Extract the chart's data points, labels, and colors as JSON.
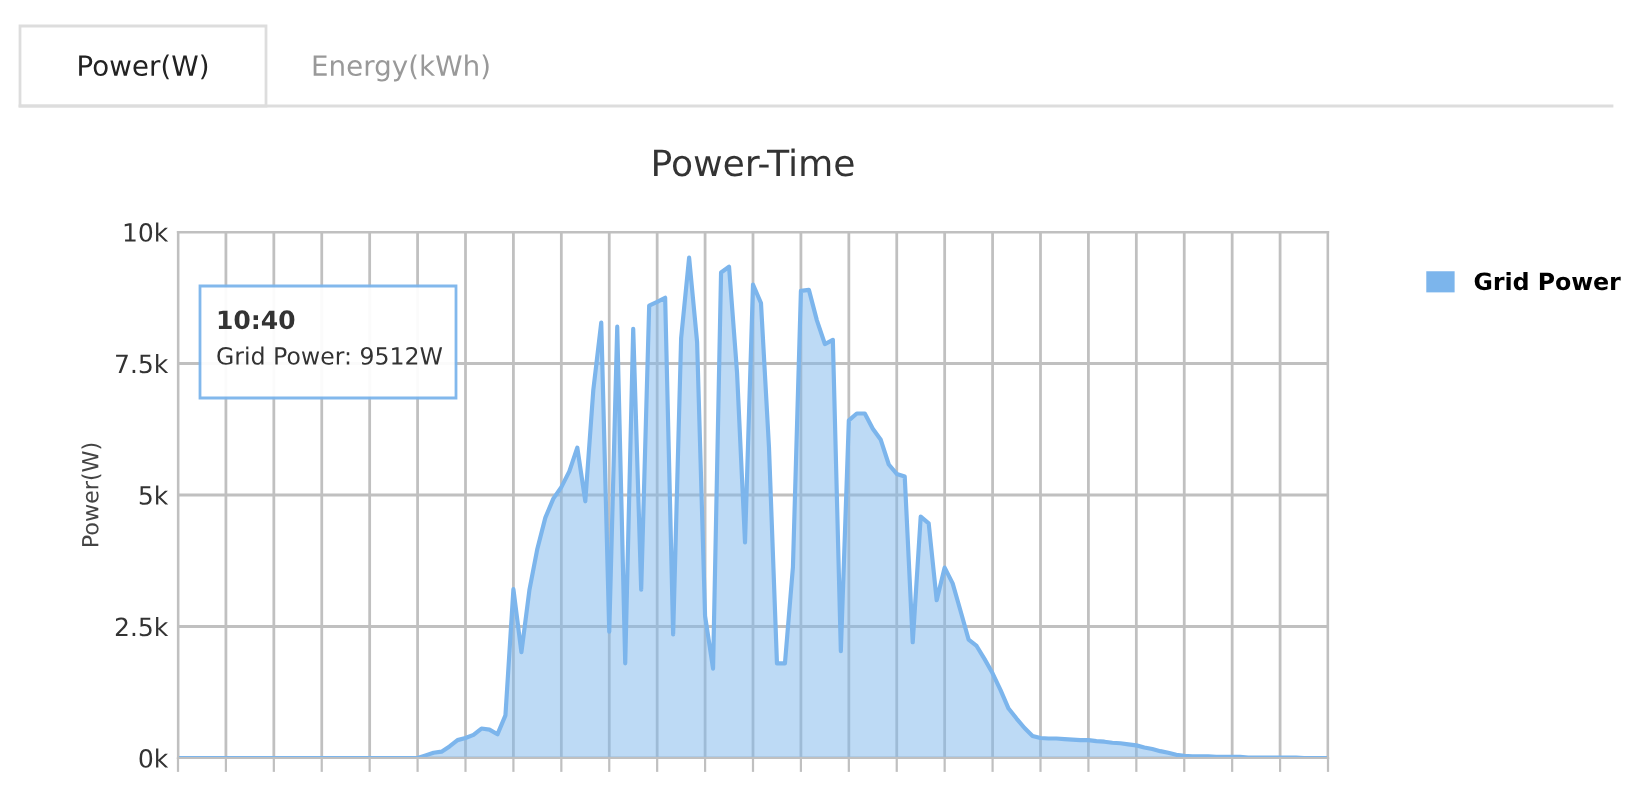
{
  "chart_data": {
    "type": "area",
    "title": "Power-Time",
    "ylabel": "Power(W)",
    "annotations": [
      "Power(W)",
      "Energy(kWh)",
      "10:40",
      "Grid Power: 9512W"
    ],
    "categories": [
      null,
      null,
      null,
      null,
      null,
      null,
      null,
      null,
      null,
      null,
      null,
      null,
      null,
      null,
      null,
      null,
      null,
      null,
      null,
      null,
      null,
      null,
      null,
      null,
      null,
      null,
      null,
      null,
      null,
      null,
      null,
      null,
      null,
      null,
      null,
      null,
      null,
      null,
      null,
      null,
      null,
      null,
      null,
      null,
      null,
      null,
      null,
      null,
      null,
      null,
      null,
      null,
      null,
      null,
      null,
      null,
      null,
      null,
      null,
      null,
      null,
      null,
      null,
      null,
      null,
      null,
      null,
      null,
      null,
      null,
      null,
      null,
      null,
      null,
      null,
      null,
      null,
      null,
      null,
      null,
      null,
      null,
      null,
      null,
      null,
      null,
      null,
      null,
      null,
      null,
      null,
      null,
      null,
      null,
      null,
      null,
      null,
      null,
      null,
      null,
      null,
      null,
      null,
      null,
      null,
      null,
      null,
      null,
      null,
      null,
      null,
      null,
      null,
      null,
      null,
      null,
      null,
      null,
      null,
      null,
      null,
      null,
      null,
      null,
      null,
      null,
      null,
      null,
      null,
      null,
      null,
      null,
      null,
      null,
      null,
      null,
      null,
      null,
      null,
      null,
      null,
      null,
      null,
      null,
      null
    ],
    "ylim": [
      0,
      10000
    ],
    "yticks": [
      {
        "value": 0,
        "label": "0k"
      },
      {
        "value": 2500,
        "label": "2.5k"
      },
      {
        "value": 5000,
        "label": "5k"
      },
      {
        "value": 7500,
        "label": "7.5k"
      },
      {
        "value": 10000,
        "label": "10k"
      }
    ],
    "grid": true,
    "legend": "top right",
    "series": [
      {
        "name": "Grid Power",
        "color": "#7cb5ec",
        "values": [
          0,
          0,
          0,
          0,
          0,
          0,
          0,
          0,
          0,
          0,
          0,
          0,
          0,
          0,
          0,
          0,
          0,
          0,
          0,
          0,
          0,
          0,
          0,
          0,
          0,
          0,
          0,
          0,
          0,
          0,
          0,
          50,
          100,
          120,
          220,
          340,
          380,
          440,
          560,
          540,
          450,
          810,
          3210,
          2010,
          3190,
          3980,
          4570,
          4930,
          5150,
          5450,
          5900,
          4880,
          6990,
          8280,
          2400,
          8200,
          1800,
          8160,
          3200,
          8600,
          8670,
          8750,
          2350,
          7980,
          9512,
          7910,
          2700,
          1700,
          9230,
          9340,
          7330,
          4100,
          9000,
          8650,
          5910,
          1800,
          1800,
          3630,
          8880,
          8900,
          8320,
          7870,
          7950,
          2030,
          6420,
          6550,
          6550,
          6260,
          6050,
          5580,
          5400,
          5350,
          2200,
          4590,
          4460,
          3000,
          3620,
          3320,
          2790,
          2250,
          2130,
          1880,
          1610,
          1290,
          940,
          750,
          570,
          420,
          380,
          370,
          370,
          360,
          350,
          340,
          340,
          320,
          310,
          290,
          280,
          260,
          240,
          200,
          170,
          130,
          100,
          60,
          40,
          30,
          30,
          30,
          20,
          20,
          20,
          20,
          10,
          10,
          10,
          10,
          10,
          10,
          10,
          0,
          0,
          0,
          0
        ]
      }
    ]
  }
}
